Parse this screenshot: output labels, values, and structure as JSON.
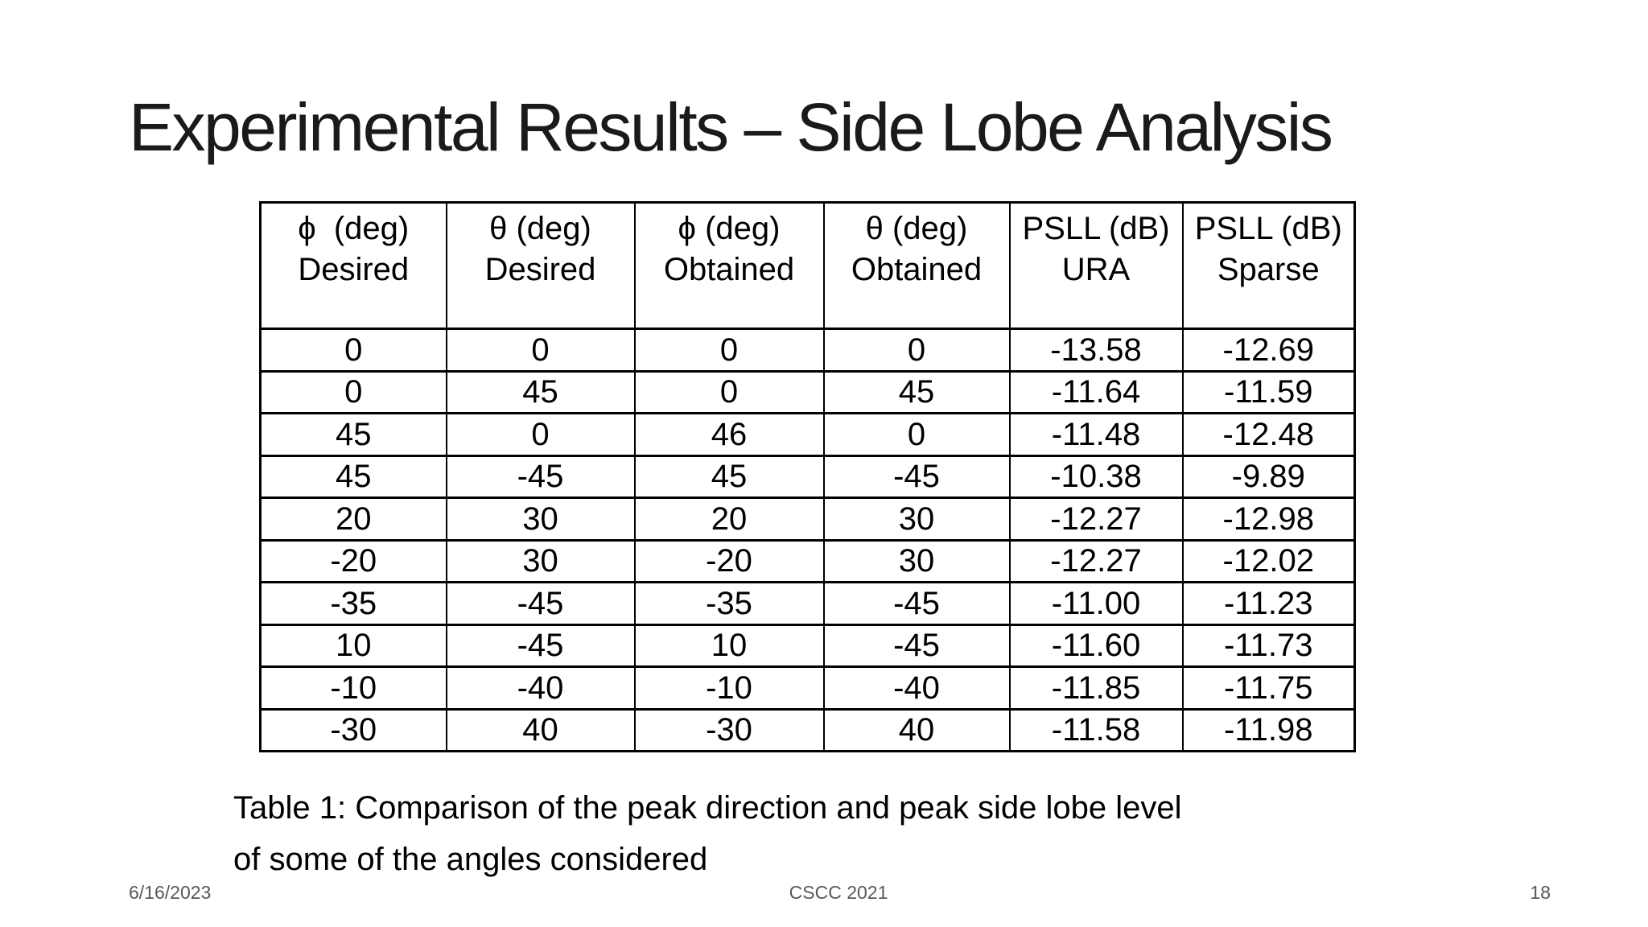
{
  "slide": {
    "title": "Experimental Results – Side Lobe Analysis",
    "caption": {
      "line1": "Table 1: Comparison of the peak direction and peak side lobe level",
      "line2": "of some of the angles considered"
    },
    "footer": {
      "date": "6/16/2023",
      "conference": "CSCC 2021",
      "page_number": "18"
    }
  },
  "table": {
    "columns": [
      {
        "line1": "ϕ  (deg)",
        "line2": "Desired"
      },
      {
        "line1": "θ (deg)",
        "line2": "Desired"
      },
      {
        "line1": "ϕ (deg)",
        "line2": "Obtained"
      },
      {
        "line1": "θ (deg)",
        "line2": "Obtained"
      },
      {
        "line1": "PSLL (dB)",
        "line2": "URA"
      },
      {
        "line1": "PSLL (dB)",
        "line2": "Sparse"
      }
    ],
    "rows": [
      [
        "0",
        "0",
        "0",
        "0",
        "-13.58",
        "-12.69"
      ],
      [
        "0",
        "45",
        "0",
        "45",
        "-11.64",
        "-11.59"
      ],
      [
        "45",
        "0",
        "46",
        "0",
        "-11.48",
        "-12.48"
      ],
      [
        "45",
        "-45",
        "45",
        "-45",
        "-10.38",
        "-9.89"
      ],
      [
        "20",
        "30",
        "20",
        "30",
        "-12.27",
        "-12.98"
      ],
      [
        "-20",
        "30",
        "-20",
        "30",
        "-12.27",
        "-12.02"
      ],
      [
        "-35",
        "-45",
        "-35",
        "-45",
        "-11.00",
        "-11.23"
      ],
      [
        "10",
        "-45",
        "10",
        "-45",
        "-11.60",
        "-11.73"
      ],
      [
        "-10",
        "-40",
        "-10",
        "-40",
        "-11.85",
        "-11.75"
      ],
      [
        "-30",
        "40",
        "-30",
        "40",
        "-11.58",
        "-11.98"
      ]
    ]
  },
  "colors": {
    "background": "#ffffff",
    "text": "#000000",
    "title_text": "#1a1a1a",
    "footer_text": "#595959",
    "table_border": "#000000"
  }
}
